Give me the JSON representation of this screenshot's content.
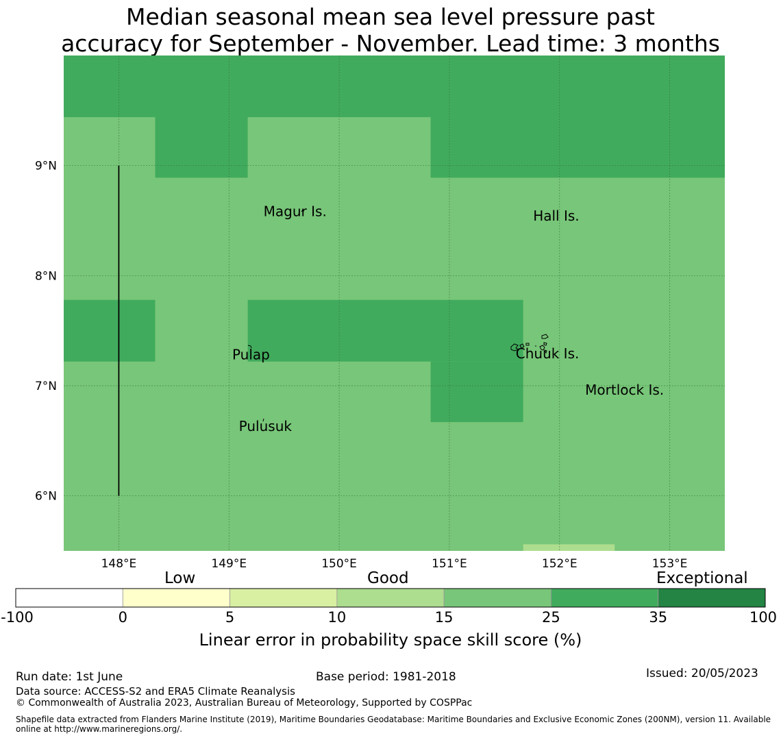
{
  "title": {
    "line1": "Median seasonal mean sea level pressure past",
    "line2": "accuracy for September - November. Lead time: 3 months"
  },
  "map": {
    "lon_range": [
      147.5,
      153.5
    ],
    "lat_range": [
      5.5,
      10.0
    ],
    "lon_ticks": [
      {
        "value": 148,
        "label": "148°E"
      },
      {
        "value": 149,
        "label": "149°E"
      },
      {
        "value": 150,
        "label": "150°E"
      },
      {
        "value": 151,
        "label": "151°E"
      },
      {
        "value": 152,
        "label": "152°E"
      },
      {
        "value": 153,
        "label": "153°E"
      }
    ],
    "lat_ticks": [
      {
        "value": 6,
        "label": "6°N"
      },
      {
        "value": 7,
        "label": "7°N"
      },
      {
        "value": 8,
        "label": "8°N"
      },
      {
        "value": 9,
        "label": "9°N"
      }
    ],
    "skill_cells": [
      {
        "lon": [
          147.5,
          153.5
        ],
        "lat": [
          5.5,
          10.0
        ],
        "category": "15-25",
        "color": "#78c679"
      },
      {
        "lon": [
          147.5,
          153.5
        ],
        "lat": [
          9.44,
          10.0
        ],
        "category": "25-35",
        "color": "#41ab5d"
      },
      {
        "lon": [
          148.33,
          149.17
        ],
        "lat": [
          8.89,
          9.44
        ],
        "category": "25-35",
        "color": "#41ab5d"
      },
      {
        "lon": [
          150.83,
          153.5
        ],
        "lat": [
          8.89,
          9.44
        ],
        "category": "25-35",
        "color": "#41ab5d"
      },
      {
        "lon": [
          147.5,
          148.33
        ],
        "lat": [
          7.22,
          7.78
        ],
        "category": "25-35",
        "color": "#41ab5d"
      },
      {
        "lon": [
          149.17,
          151.67
        ],
        "lat": [
          7.22,
          7.78
        ],
        "category": "25-35",
        "color": "#41ab5d"
      },
      {
        "lon": [
          150.83,
          151.67
        ],
        "lat": [
          6.67,
          7.22
        ],
        "category": "25-35",
        "color": "#41ab5d"
      },
      {
        "lon": [
          151.67,
          152.5
        ],
        "lat": [
          5.5,
          5.56
        ],
        "category": "10-15",
        "color": "#addd8e"
      }
    ],
    "boundary_line": {
      "lon": 148.0,
      "lat": [
        6.0,
        9.0
      ]
    },
    "places": [
      {
        "name": "Magur Is.",
        "lon": 149.6,
        "lat": 8.54
      },
      {
        "name": "Hall Is.",
        "lon": 151.97,
        "lat": 8.5
      },
      {
        "name": "Pulap",
        "lon": 149.2,
        "lat": 7.24
      },
      {
        "name": "Chuuk Is.",
        "lon": 151.89,
        "lat": 7.25
      },
      {
        "name": "Mortlock Is.",
        "lon": 152.59,
        "lat": 6.92
      },
      {
        "name": "Pulusuk",
        "lon": 149.33,
        "lat": 6.59
      }
    ]
  },
  "colorbar": {
    "categories": [
      {
        "from": -100,
        "to": 0,
        "color": "#ffffff"
      },
      {
        "from": 0,
        "to": 5,
        "color": "#ffffcc"
      },
      {
        "from": 5,
        "to": 10,
        "color": "#d9f0a3"
      },
      {
        "from": 10,
        "to": 15,
        "color": "#addd8e"
      },
      {
        "from": 15,
        "to": 25,
        "color": "#78c679"
      },
      {
        "from": 25,
        "to": 35,
        "color": "#41ab5d"
      },
      {
        "from": 35,
        "to": 100,
        "color": "#238443"
      }
    ],
    "tick_labels": [
      "-100",
      "0",
      "5",
      "10",
      "15",
      "25",
      "35",
      "100"
    ],
    "headers": {
      "low": "Low",
      "good": "Good",
      "exceptional": "Exceptional"
    },
    "label": "Linear error in probability space skill score (%)"
  },
  "footer": {
    "run_date": "Run date: 1st June",
    "base_period": "Base period: 1981-2018",
    "issued": "Issued: 20/05/2023",
    "data_source": "Data source: ACCESS-S2 and ERA5 Climate Reanalysis",
    "copyright": "© Commonwealth of Australia 2023, Australian Bureau of Meteorology, Supported by COSPPac",
    "shapefile_line1": "Shapefile data extracted from Flanders Marine Institute (2019), Maritime Boundaries Geodatabase: Maritime Boundaries and Exclusive Economic Zones (200NM), version 11. Available",
    "shapefile_line2": "online at http://www.marineregions.org/."
  }
}
